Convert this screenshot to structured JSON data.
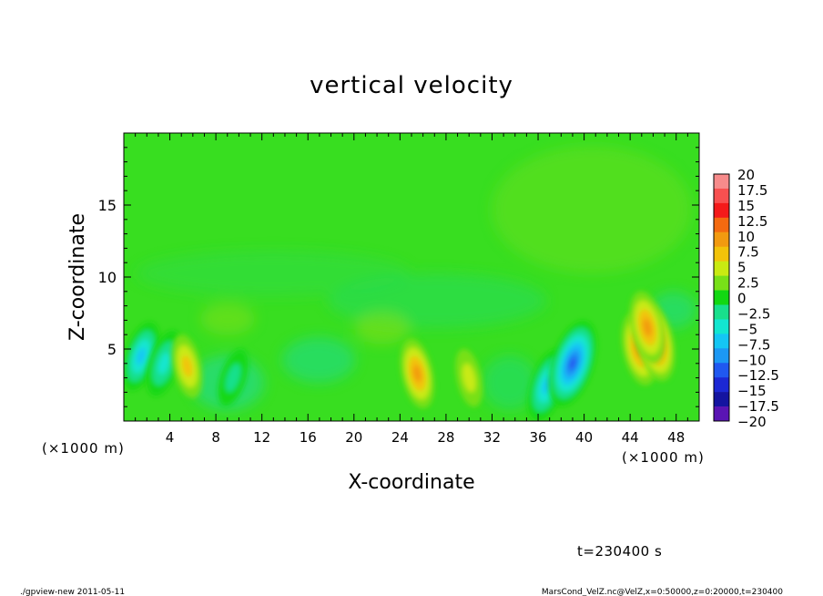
{
  "chart_data": {
    "type": "heatmap",
    "title": "vertical velocity",
    "xlabel": "X-coordinate",
    "ylabel": "Z-coordinate",
    "x_unit": "(×1000 m)",
    "x_unit_right": "(×1000 m)",
    "xlim": [
      0,
      50
    ],
    "ylim": [
      0,
      20
    ],
    "x_ticks": [
      4,
      8,
      12,
      16,
      20,
      24,
      28,
      32,
      36,
      40,
      44,
      48
    ],
    "x_tick_labels": [
      "4",
      "8",
      "12",
      "16",
      "20",
      "24",
      "28",
      "32",
      "36",
      "40",
      "44",
      "48"
    ],
    "y_ticks": [
      5,
      10,
      15
    ],
    "y_tick_labels": [
      "5",
      "10",
      "15"
    ],
    "colorbar": {
      "levels": [
        20,
        17.5,
        15,
        12.5,
        10,
        7.5,
        5,
        2.5,
        0,
        -2.5,
        -5,
        -7.5,
        -10,
        -12.5,
        -15,
        -17.5,
        -20
      ],
      "labels": [
        "20",
        "17.5",
        "15",
        "12.5",
        "10",
        "7.5",
        "5",
        "2.5",
        "0",
        "−2.5",
        "−5",
        "−7.5",
        "−10",
        "−12.5",
        "−15",
        "−17.5",
        "−20"
      ],
      "colors": [
        "#f78b8b",
        "#f85050",
        "#f41a1a",
        "#f46a10",
        "#f29a10",
        "#f2c30a",
        "#c9ea12",
        "#78e018",
        "#12d812",
        "#18e08c",
        "#12e6d0",
        "#14c6f4",
        "#1c98f4",
        "#2058f0",
        "#1c28d4",
        "#1414a0",
        "#5a14b4"
      ]
    },
    "features": [
      {
        "x": 1.5,
        "z": 4.5,
        "value": -8
      },
      {
        "x": 3.5,
        "z": 4.0,
        "value": -7
      },
      {
        "x": 5.5,
        "z": 3.8,
        "value": 6
      },
      {
        "x": 9.5,
        "z": 3.0,
        "value": -4
      },
      {
        "x": 25.5,
        "z": 3.3,
        "value": 8
      },
      {
        "x": 30.0,
        "z": 3.0,
        "value": 4
      },
      {
        "x": 36.8,
        "z": 2.5,
        "value": -9
      },
      {
        "x": 39.0,
        "z": 4.0,
        "value": -14
      },
      {
        "x": 44.8,
        "z": 5.0,
        "value": 9
      },
      {
        "x": 46.2,
        "z": 5.5,
        "value": 11
      },
      {
        "x": 45.5,
        "z": 6.5,
        "value": 9
      }
    ]
  },
  "annotations": {
    "time": "t=230400 s",
    "program": "./gpview-new  2011-05-11",
    "source": "MarsCond_VelZ.nc@VelZ,x=0:50000,z=0:20000,t=230400"
  }
}
